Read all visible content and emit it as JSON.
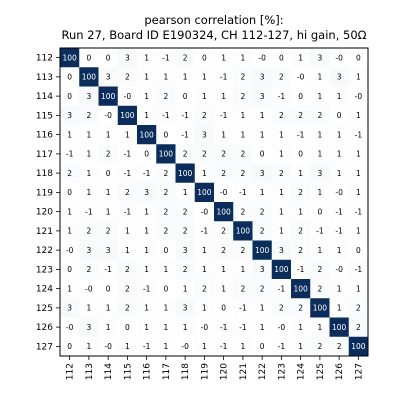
{
  "chart_data": {
    "type": "heatmap",
    "title": "pearson correlation [%]:",
    "subtitle": "Run 27, Board ID E190324, CH 112-127, hi gain, 50Ω",
    "xlabel": "",
    "ylabel": "",
    "x_categories": [
      "112",
      "113",
      "114",
      "115",
      "116",
      "117",
      "118",
      "119",
      "120",
      "121",
      "122",
      "123",
      "124",
      "125",
      "126",
      "127"
    ],
    "y_categories": [
      "112",
      "113",
      "114",
      "115",
      "116",
      "117",
      "118",
      "119",
      "120",
      "121",
      "122",
      "123",
      "124",
      "125",
      "126",
      "127"
    ],
    "value_range": [
      -100,
      100
    ],
    "colormap": {
      "negative": "#8b1a1a",
      "zero": "#ffffff",
      "positive": "#0b2d5c"
    },
    "values": [
      [
        "100",
        "0",
        "0",
        "3",
        "1",
        "-1",
        "2",
        "0",
        "1",
        "1",
        "-0",
        "0",
        "1",
        "3",
        "-0",
        "0"
      ],
      [
        "0",
        "100",
        "3",
        "2",
        "1",
        "1",
        "1",
        "1",
        "-1",
        "2",
        "3",
        "2",
        "-0",
        "1",
        "3",
        "1"
      ],
      [
        "0",
        "3",
        "100",
        "-0",
        "1",
        "2",
        "0",
        "1",
        "1",
        "2",
        "3",
        "-1",
        "0",
        "1",
        "1",
        "-0"
      ],
      [
        "3",
        "2",
        "-0",
        "100",
        "1",
        "-1",
        "-1",
        "2",
        "-1",
        "1",
        "1",
        "2",
        "2",
        "2",
        "0",
        "1"
      ],
      [
        "1",
        "1",
        "1",
        "1",
        "100",
        "0",
        "-1",
        "3",
        "1",
        "1",
        "1",
        "1",
        "-1",
        "1",
        "1",
        "-1"
      ],
      [
        "-1",
        "1",
        "2",
        "-1",
        "0",
        "100",
        "2",
        "2",
        "2",
        "2",
        "0",
        "1",
        "0",
        "1",
        "1",
        "1"
      ],
      [
        "2",
        "1",
        "0",
        "-1",
        "-1",
        "2",
        "100",
        "1",
        "2",
        "2",
        "3",
        "2",
        "1",
        "3",
        "1",
        "1"
      ],
      [
        "0",
        "1",
        "1",
        "2",
        "3",
        "2",
        "1",
        "100",
        "-0",
        "-1",
        "1",
        "1",
        "2",
        "1",
        "-0",
        "1"
      ],
      [
        "1",
        "-1",
        "1",
        "-1",
        "1",
        "2",
        "2",
        "-0",
        "100",
        "2",
        "2",
        "1",
        "1",
        "0",
        "-1",
        "-1"
      ],
      [
        "1",
        "2",
        "2",
        "1",
        "1",
        "2",
        "2",
        "-1",
        "2",
        "100",
        "2",
        "1",
        "2",
        "-1",
        "-1",
        "1"
      ],
      [
        "-0",
        "3",
        "3",
        "1",
        "1",
        "0",
        "3",
        "1",
        "2",
        "2",
        "100",
        "3",
        "2",
        "1",
        "1",
        "0"
      ],
      [
        "0",
        "2",
        "-1",
        "2",
        "1",
        "1",
        "2",
        "1",
        "1",
        "1",
        "3",
        "100",
        "-1",
        "2",
        "-0",
        "-1"
      ],
      [
        "1",
        "-0",
        "0",
        "2",
        "-1",
        "0",
        "1",
        "2",
        "1",
        "2",
        "2",
        "-1",
        "100",
        "2",
        "1",
        "1"
      ],
      [
        "3",
        "1",
        "1",
        "2",
        "1",
        "1",
        "3",
        "1",
        "0",
        "-1",
        "1",
        "2",
        "2",
        "100",
        "1",
        "2"
      ],
      [
        "-0",
        "3",
        "1",
        "0",
        "1",
        "1",
        "1",
        "-0",
        "-1",
        "-1",
        "1",
        "-0",
        "1",
        "1",
        "100",
        "2"
      ],
      [
        "0",
        "1",
        "-0",
        "1",
        "-1",
        "1",
        "-0",
        "1",
        "-1",
        "1",
        "0",
        "-1",
        "1",
        "2",
        "2",
        "100"
      ]
    ]
  }
}
